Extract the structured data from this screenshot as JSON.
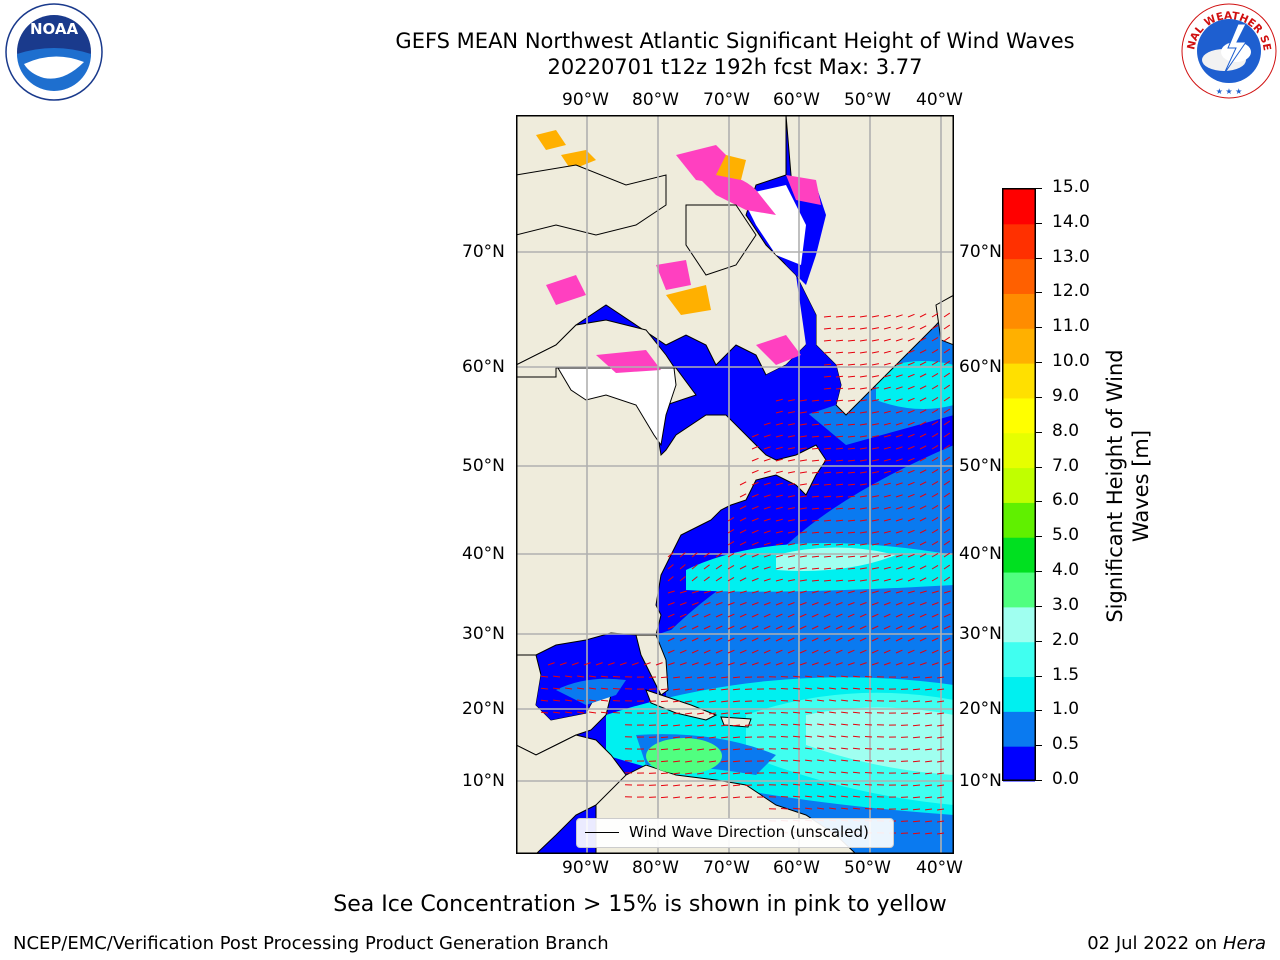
{
  "header": {
    "title": "GEFS MEAN Northwest Atlantic Significant Height of Wind Waves",
    "subtitle": "20220701 t12z 192h fcst   Max: 3.77"
  },
  "logos": {
    "left": "NOAA",
    "right": "NATIONAL WEATHER SERVICE"
  },
  "map": {
    "lon_labels": [
      "90°W",
      "80°W",
      "70°W",
      "60°W",
      "50°W",
      "40°W"
    ],
    "lat_labels": [
      "70°N",
      "60°N",
      "50°N",
      "40°N",
      "30°N",
      "20°N",
      "10°N"
    ],
    "land_color": "#efecdc",
    "grid_color": "#b0b0b0",
    "arrow_color": "#e8000b"
  },
  "legend": {
    "label": "Wind Wave Direction (unscaled)"
  },
  "colorbar": {
    "label": "Significant Height of Wind Waves [m]",
    "ticks": [
      "15.0",
      "14.0",
      "13.0",
      "12.0",
      "11.0",
      "10.0",
      "9.0",
      "8.0",
      "7.0",
      "6.0",
      "5.0",
      "4.0",
      "3.0",
      "2.0",
      "1.5",
      "1.0",
      "0.5",
      "0.0"
    ],
    "colors": [
      "#0000ff",
      "#0a7af0",
      "#00f0f0",
      "#40fff0",
      "#a0fff0",
      "#50ff80",
      "#00e020",
      "#60f000",
      "#c0ff00",
      "#e6ff00",
      "#ffff00",
      "#ffe000",
      "#ffb000",
      "#ff8c00",
      "#ff6000",
      "#ff3000",
      "#ff0000"
    ]
  },
  "caption": "Sea Ice Concentration > 15% is shown in pink to yellow",
  "footer": {
    "left": "NCEP/EMC/Verification Post Processing Product Generation Branch",
    "right_date": "02 Jul 2022 on ",
    "right_host": "Hera"
  }
}
